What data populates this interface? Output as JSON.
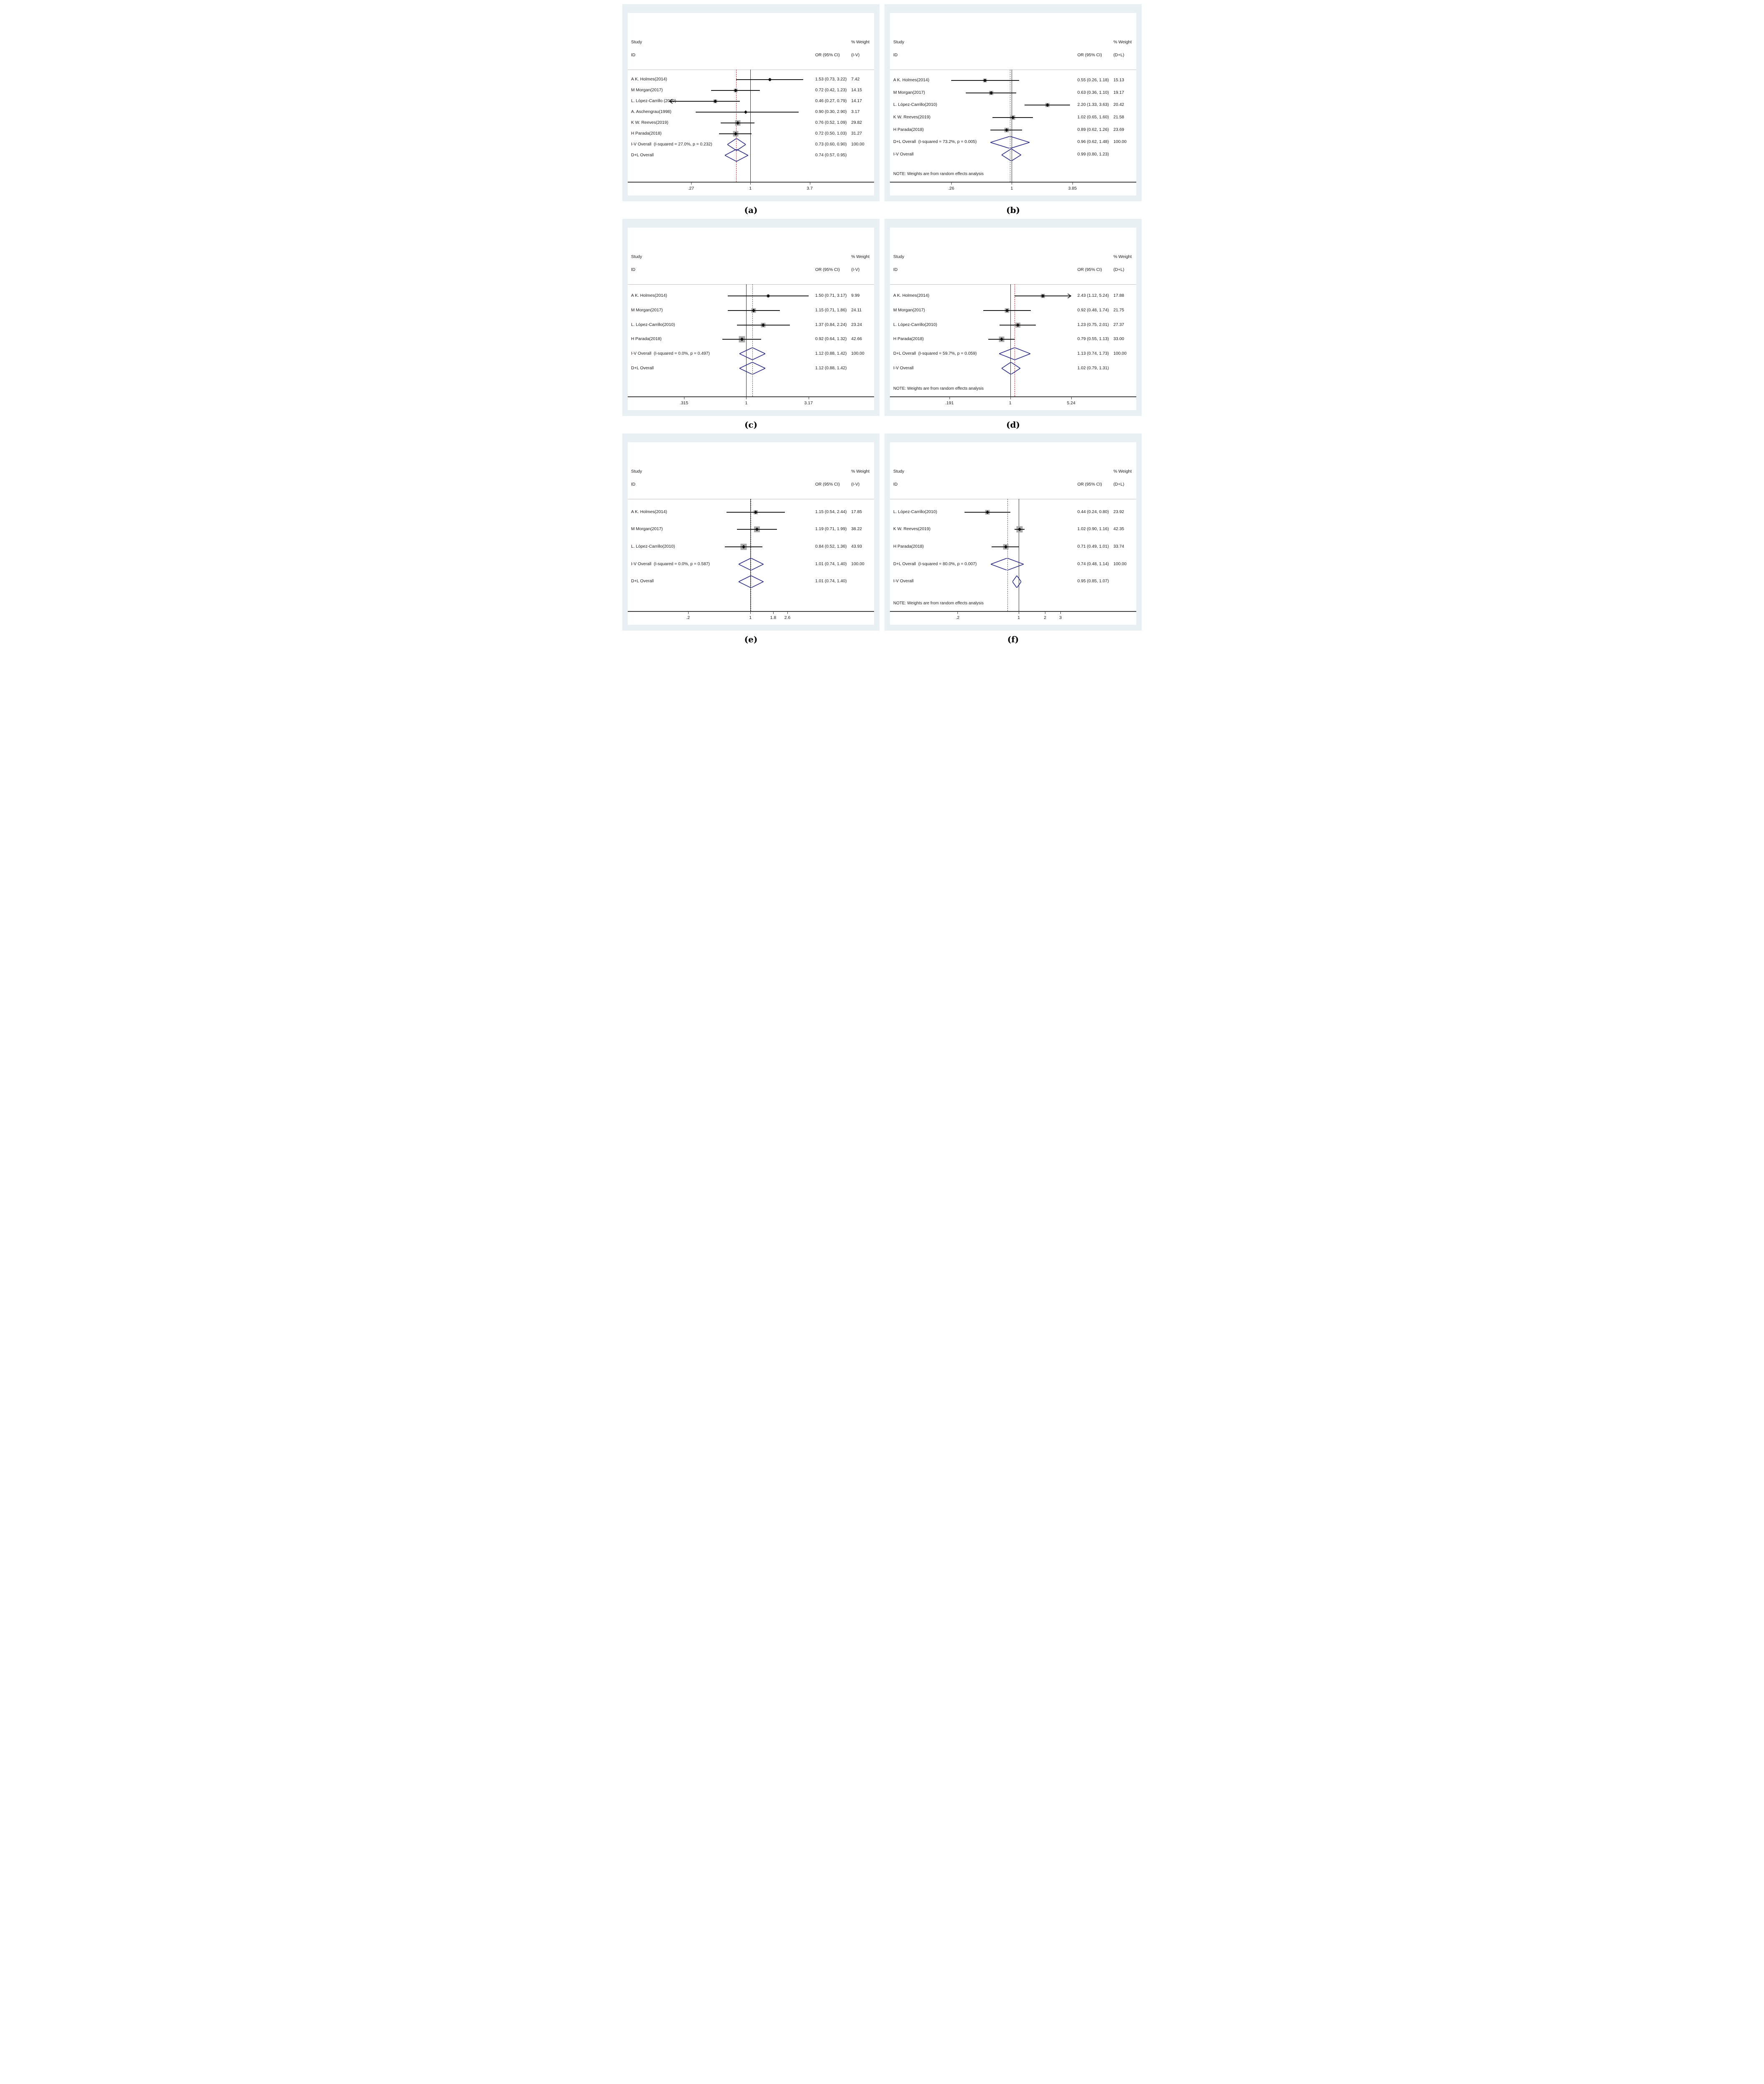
{
  "chart_data": {
    "type": "forest",
    "description": "Six Stata-style forest plots of odds ratios (log scale), panels (a)-(f)",
    "colors": {
      "panel_bg": "#e9f0f3",
      "plot_bg": "#ffffff",
      "ci": "#1a1a1a",
      "weight_box": "#a9a9a9",
      "diamond": "#23238b",
      "dashed": "#9e3a3e",
      "axis": "#3a3a3a",
      "sep": "#c4c4c4"
    },
    "panels": [
      {
        "caption": "(a)",
        "header": {
          "study": "Study",
          "id": "ID",
          "or": "OR (95% CI)",
          "weight": "% Weight",
          "method": "(I-V)"
        },
        "axis": {
          "scale": "log",
          "center_pct": 49.8,
          "pct_per_decade": 40.6,
          "ticks": [
            {
              "v": 0.27,
              "label": ".27"
            },
            {
              "v": 1,
              "label": "1"
            },
            {
              "v": 3.7,
              "label": "3.7"
            }
          ]
        },
        "pooled": 0.73,
        "studies": [
          {
            "label": "A K. Holmes(2014)",
            "or": 1.53,
            "lo": 0.73,
            "hi": 3.22,
            "or_text": "1.53 (0.73, 3.22)",
            "weight": 7.42,
            "weight_text": "7.42"
          },
          {
            "label": "M Morgan(2017)",
            "or": 0.72,
            "lo": 0.42,
            "hi": 1.23,
            "or_text": "0.72 (0.42, 1.23)",
            "weight": 14.15,
            "weight_text": "14.15"
          },
          {
            "label": "L. López-Carrillo (2010)",
            "or": 0.46,
            "lo": 0.27,
            "hi": 0.79,
            "or_text": "0.46 (0.27, 0.79)",
            "weight": 14.17,
            "weight_text": "14.17",
            "arrow": "left",
            "arrow_tip": 0.167
          },
          {
            "label": "A. Aschengrau(1998)",
            "or": 0.9,
            "lo": 0.3,
            "hi": 2.9,
            "or_text": "0.90 (0.30, 2.90)",
            "weight": 3.17,
            "weight_text": "3.17"
          },
          {
            "label": "K W. Reeves(2019)",
            "or": 0.76,
            "lo": 0.52,
            "hi": 1.09,
            "or_text": "0.76 (0.52, 1.09)",
            "weight": 29.82,
            "weight_text": "29.82"
          },
          {
            "label": "H Parada(2018)",
            "or": 0.72,
            "lo": 0.5,
            "hi": 1.03,
            "or_text": "0.72 (0.50, 1.03)",
            "weight": 31.27,
            "weight_text": "31.27"
          }
        ],
        "overalls": [
          {
            "label": "I-V Overall  (I-squared = 27.0%, p = 0.232)",
            "or": 0.73,
            "lo": 0.6,
            "hi": 0.9,
            "or_text": "0.73 (0.60, 0.90)",
            "weight_text": "100.00"
          },
          {
            "label": "D+L Overall",
            "or": 0.74,
            "lo": 0.57,
            "hi": 0.95,
            "or_text": "0.74 (0.57, 0.95)",
            "weight_text": ""
          }
        ],
        "note": ""
      },
      {
        "caption": "(b)",
        "header": {
          "study": "Study",
          "id": "ID",
          "or": "OR (95% CI)",
          "weight": "% Weight",
          "method": "(D+L)"
        },
        "axis": {
          "scale": "log",
          "center_pct": 49.5,
          "pct_per_decade": 40.3,
          "ticks": [
            {
              "v": 0.26,
              "label": ".26"
            },
            {
              "v": 1,
              "label": "1"
            },
            {
              "v": 3.85,
              "label": "3.85"
            }
          ]
        },
        "pooled": 0.96,
        "studies": [
          {
            "label": "A K. Holmes(2014)",
            "or": 0.55,
            "lo": 0.26,
            "hi": 1.18,
            "or_text": "0.55 (0.26, 1.18)",
            "weight": 15.13,
            "weight_text": "15.13"
          },
          {
            "label": "M Morgan(2017)",
            "or": 0.63,
            "lo": 0.36,
            "hi": 1.1,
            "or_text": "0.63 (0.36, 1.10)",
            "weight": 19.17,
            "weight_text": "19.17"
          },
          {
            "label": "L. López-Carrillo(2010)",
            "or": 2.2,
            "lo": 1.33,
            "hi": 3.63,
            "or_text": "2.20 (1.33, 3.63)",
            "weight": 20.42,
            "weight_text": "20.42"
          },
          {
            "label": "K W. Reeves(2019)",
            "or": 1.02,
            "lo": 0.65,
            "hi": 1.6,
            "or_text": "1.02 (0.65, 1.60)",
            "weight": 21.58,
            "weight_text": "21.58"
          },
          {
            "label": "H Parada(2018)",
            "or": 0.89,
            "lo": 0.62,
            "hi": 1.26,
            "or_text": "0.89 (0.62, 1.26)",
            "weight": 23.69,
            "weight_text": "23.69"
          }
        ],
        "overalls": [
          {
            "label": "D+L Overall  (I-squared = 73.2%, p = 0.005)",
            "or": 0.96,
            "lo": 0.62,
            "hi": 1.48,
            "or_text": "0.96 (0.62, 1.48)",
            "weight_text": "100.00"
          },
          {
            "label": "I-V Overall",
            "or": 0.99,
            "lo": 0.8,
            "hi": 1.23,
            "or_text": "0.99 (0.80, 1.23)",
            "weight_text": ""
          }
        ],
        "note": "NOTE: Weights are from random effects analysis"
      },
      {
        "caption": "(c)",
        "header": {
          "study": "Study",
          "id": "ID",
          "or": "OR (95% CI)",
          "weight": "% Weight",
          "method": "(I-V)"
        },
        "axis": {
          "scale": "log",
          "center_pct": 48.2,
          "pct_per_decade": 48.3,
          "ticks": [
            {
              "v": 0.315,
              "label": ".315"
            },
            {
              "v": 1,
              "label": "1"
            },
            {
              "v": 3.17,
              "label": "3.17"
            }
          ]
        },
        "pooled": 1.12,
        "studies": [
          {
            "label": "A K. Holmes(2014)",
            "or": 1.5,
            "lo": 0.71,
            "hi": 3.17,
            "or_text": "1.50 (0.71, 3.17)",
            "weight": 9.99,
            "weight_text": "9.99"
          },
          {
            "label": "M Morgan(2017)",
            "or": 1.15,
            "lo": 0.71,
            "hi": 1.86,
            "or_text": "1.15 (0.71, 1.86)",
            "weight": 24.11,
            "weight_text": "24.11"
          },
          {
            "label": "L. López-Carrillo(2010)",
            "or": 1.37,
            "lo": 0.84,
            "hi": 2.24,
            "or_text": "1.37 (0.84, 2.24)",
            "weight": 23.24,
            "weight_text": "23.24"
          },
          {
            "label": "H Parada(2018)",
            "or": 0.92,
            "lo": 0.64,
            "hi": 1.32,
            "or_text": "0.92 (0.64, 1.32)",
            "weight": 42.66,
            "weight_text": "42.66"
          }
        ],
        "overalls": [
          {
            "label": "I-V Overall  (I-squared = 0.0%, p = 0.497)",
            "or": 1.12,
            "lo": 0.88,
            "hi": 1.42,
            "or_text": "1.12 (0.88, 1.42)",
            "weight_text": "100.00"
          },
          {
            "label": "D+L Overall",
            "or": 1.12,
            "lo": 0.88,
            "hi": 1.42,
            "or_text": "1.12 (0.88, 1.42)",
            "weight_text": ""
          }
        ],
        "note": ""
      },
      {
        "caption": "(d)",
        "header": {
          "study": "Study",
          "id": "ID",
          "or": "OR (95% CI)",
          "weight": "% Weight",
          "method": "(D+L)"
        },
        "axis": {
          "scale": "log",
          "center_pct": 48.9,
          "pct_per_decade": 32.9,
          "ticks": [
            {
              "v": 0.191,
              "label": ".191"
            },
            {
              "v": 1,
              "label": "1"
            },
            {
              "v": 5.24,
              "label": "5.24"
            }
          ]
        },
        "pooled": 1.13,
        "studies": [
          {
            "label": "A K. Holmes(2014)",
            "or": 2.43,
            "lo": 1.12,
            "hi": 5.24,
            "or_text": "2.43 (1.12, 5.24)",
            "weight": 17.88,
            "weight_text": "17.88",
            "arrow": "right",
            "arrow_tip": 5.24
          },
          {
            "label": "M Morgan(2017)",
            "or": 0.92,
            "lo": 0.48,
            "hi": 1.74,
            "or_text": "0.92 (0.48, 1.74)",
            "weight": 21.75,
            "weight_text": "21.75"
          },
          {
            "label": "L. López-Carrillo(2010)",
            "or": 1.23,
            "lo": 0.75,
            "hi": 2.01,
            "or_text": "1.23 (0.75, 2.01)",
            "weight": 27.37,
            "weight_text": "27.37"
          },
          {
            "label": "H Parada(2018)",
            "or": 0.79,
            "lo": 0.55,
            "hi": 1.13,
            "or_text": "0.79 (0.55, 1.13)",
            "weight": 33.0,
            "weight_text": "33.00"
          }
        ],
        "overalls": [
          {
            "label": "D+L Overall  (I-squared = 59.7%, p = 0.059)",
            "or": 1.13,
            "lo": 0.74,
            "hi": 1.73,
            "or_text": "1.13 (0.74, 1.73)",
            "weight_text": "100.00"
          },
          {
            "label": "I-V Overall",
            "or": 1.02,
            "lo": 0.79,
            "hi": 1.31,
            "or_text": "1.02 (0.79, 1.31)",
            "weight_text": ""
          }
        ],
        "note": "NOTE: Weights are from random effects analysis"
      },
      {
        "caption": "(e)",
        "header": {
          "study": "Study",
          "id": "ID",
          "or": "OR (95% CI)",
          "weight": "% Weight",
          "method": "(I-V)"
        },
        "axis": {
          "scale": "log",
          "center_pct": 49.8,
          "pct_per_decade": 34.7,
          "ticks": [
            {
              "v": 0.2,
              "label": ".2"
            },
            {
              "v": 1,
              "label": "1"
            },
            {
              "v": 1.8,
              "label": "1.8"
            },
            {
              "v": 2.6,
              "label": "2.6"
            }
          ]
        },
        "pooled": 1.01,
        "studies": [
          {
            "label": "A K. Holmes(2014)",
            "or": 1.15,
            "lo": 0.54,
            "hi": 2.44,
            "or_text": "1.15 (0.54, 2.44)",
            "weight": 17.85,
            "weight_text": "17.85"
          },
          {
            "label": "M Morgan(2017)",
            "or": 1.19,
            "lo": 0.71,
            "hi": 1.99,
            "or_text": "1.19 (0.71, 1.99)",
            "weight": 38.22,
            "weight_text": "38.22"
          },
          {
            "label": "L. López-Carrillo(2010)",
            "or": 0.84,
            "lo": 0.52,
            "hi": 1.36,
            "or_text": "0.84 (0.52, 1.36)",
            "weight": 43.93,
            "weight_text": "43.93"
          }
        ],
        "overalls": [
          {
            "label": "I-V Overall  (I-squared = 0.0%, p = 0.587)",
            "or": 1.01,
            "lo": 0.74,
            "hi": 1.4,
            "or_text": "1.01 (0.74, 1.40)",
            "weight_text": "100.00"
          },
          {
            "label": "D+L Overall",
            "or": 1.01,
            "lo": 0.74,
            "hi": 1.4,
            "or_text": "1.01 (0.74, 1.40)",
            "weight_text": ""
          }
        ],
        "note": ""
      },
      {
        "caption": "(f)",
        "header": {
          "study": "Study",
          "id": "ID",
          "or": "OR (95% CI)",
          "weight": "% Weight",
          "method": "(D+L)"
        },
        "axis": {
          "scale": "log",
          "center_pct": 52.2,
          "pct_per_decade": 34.0,
          "ticks": [
            {
              "v": 0.2,
              "label": ".2"
            },
            {
              "v": 1,
              "label": "1"
            },
            {
              "v": 2,
              "label": "2"
            },
            {
              "v": 3,
              "label": "3"
            }
          ]
        },
        "pooled": 0.74,
        "studies": [
          {
            "label": "L. López-Carrillo(2010)",
            "or": 0.44,
            "lo": 0.24,
            "hi": 0.8,
            "or_text": "0.44 (0.24, 0.80)",
            "weight": 23.92,
            "weight_text": "23.92"
          },
          {
            "label": "K W. Reeves(2019)",
            "or": 1.02,
            "lo": 0.9,
            "hi": 1.16,
            "or_text": "1.02 (0.90, 1.16)",
            "weight": 42.35,
            "weight_text": "42.35"
          },
          {
            "label": "H Parada(2018)",
            "or": 0.71,
            "lo": 0.49,
            "hi": 1.01,
            "or_text": "0.71 (0.49, 1.01)",
            "weight": 33.74,
            "weight_text": "33.74"
          }
        ],
        "overalls": [
          {
            "label": "D+L Overall  (I-squared = 80.0%, p = 0.007)",
            "or": 0.74,
            "lo": 0.48,
            "hi": 1.14,
            "or_text": "0.74 (0.48, 1.14)",
            "weight_text": "100.00"
          },
          {
            "label": "I-V Overall",
            "or": 0.95,
            "lo": 0.85,
            "hi": 1.07,
            "or_text": "0.95 (0.85, 1.07)",
            "weight_text": ""
          }
        ],
        "note": "NOTE: Weights are from random effects analysis"
      }
    ]
  }
}
